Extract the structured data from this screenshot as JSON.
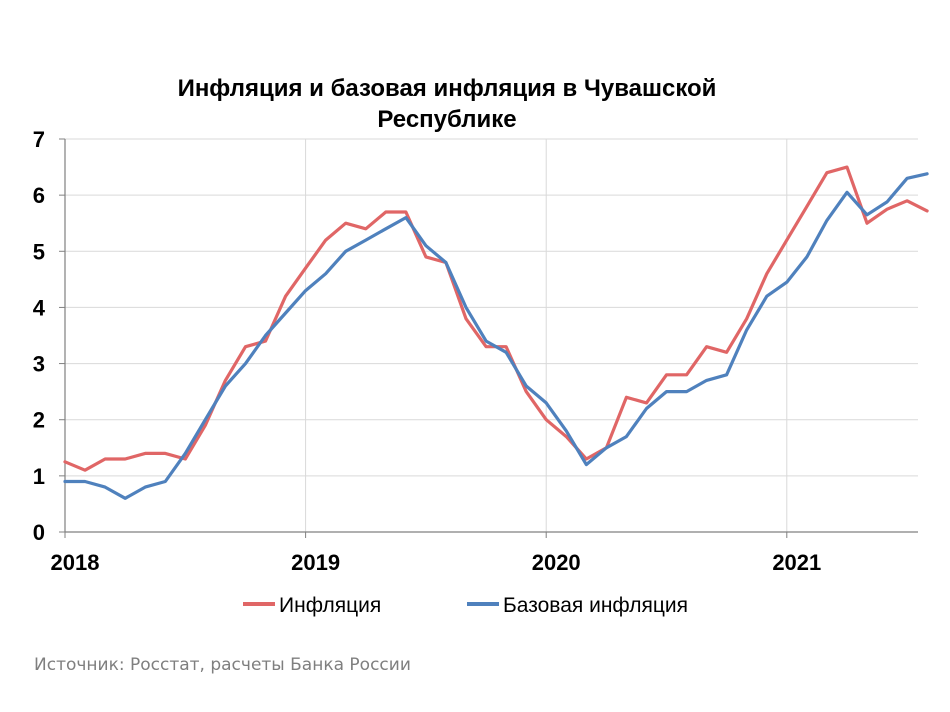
{
  "chart_data": {
    "type": "line",
    "title_line1": "Инфляция и базовая инфляция в Чувашской",
    "title_line2": "Республике",
    "ylim": [
      0,
      7
    ],
    "yticks": [
      "0",
      "1",
      "2",
      "3",
      "4",
      "5",
      "6",
      "7"
    ],
    "xticks": [
      "2018",
      "2019",
      "2020",
      "2021"
    ],
    "grid": true,
    "legend_position": "bottom",
    "x_start": "2018-01",
    "series": [
      {
        "name": "Инфляция",
        "color": "#e06666",
        "values": [
          1.25,
          1.1,
          1.3,
          1.3,
          1.4,
          1.4,
          1.3,
          1.9,
          2.7,
          3.3,
          3.4,
          4.2,
          4.7,
          5.2,
          5.5,
          5.4,
          5.7,
          5.7,
          4.9,
          4.8,
          3.8,
          3.3,
          3.3,
          2.5,
          2.0,
          1.7,
          1.3,
          1.5,
          2.4,
          2.3,
          2.8,
          2.8,
          3.3,
          3.2,
          3.8,
          4.6,
          5.2,
          5.8,
          6.4,
          6.5,
          5.5,
          5.75,
          5.9,
          5.72
        ]
      },
      {
        "name": "Базовая инфляция",
        "color": "#4f81bd",
        "values": [
          0.9,
          0.9,
          0.8,
          0.6,
          0.8,
          0.9,
          1.4,
          2.0,
          2.6,
          3.0,
          3.5,
          3.9,
          4.3,
          4.6,
          5.0,
          5.2,
          5.4,
          5.6,
          5.1,
          4.8,
          4.0,
          3.4,
          3.2,
          2.6,
          2.3,
          1.8,
          1.2,
          1.5,
          1.7,
          2.2,
          2.5,
          2.5,
          2.7,
          2.8,
          3.6,
          4.2,
          4.45,
          4.9,
          5.55,
          6.05,
          5.65,
          5.88,
          6.3,
          6.38
        ]
      }
    ]
  },
  "source": "Источник: Росстат, расчеты Банка России"
}
